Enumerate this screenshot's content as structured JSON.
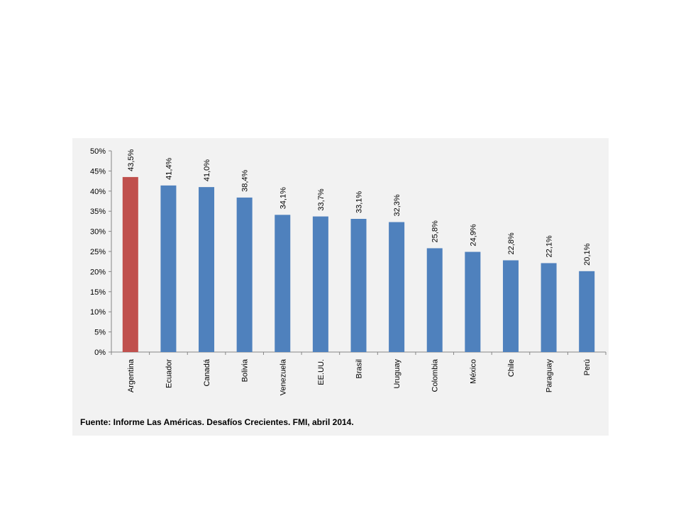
{
  "source_note": "Fuente: Informe Las Américas. Desafíos Crecientes. FMI, abril 2014.",
  "colors": {
    "highlight": "#c0504d",
    "bar": "#4f81bd",
    "panel": "#f2f2f2",
    "axis": "#868686"
  },
  "chart_data": {
    "type": "bar",
    "title": "",
    "xlabel": "",
    "ylabel": "",
    "ylim": [
      0,
      50
    ],
    "y_ticks": [
      "0%",
      "5%",
      "10%",
      "15%",
      "20%",
      "25%",
      "30%",
      "35%",
      "40%",
      "45%",
      "50%"
    ],
    "y_tick_values": [
      0,
      5,
      10,
      15,
      20,
      25,
      30,
      35,
      40,
      45,
      50
    ],
    "categories": [
      "Argentina",
      "Ecuador",
      "Canadá",
      "Bolivia",
      "Venezuela",
      "EE.UU.",
      "Brasil",
      "Uruguay",
      "Colombia",
      "México",
      "Chile",
      "Paraguay",
      "Perú"
    ],
    "values": [
      43.5,
      41.4,
      41.0,
      38.4,
      34.1,
      33.7,
      33.1,
      32.3,
      25.8,
      24.9,
      22.8,
      22.1,
      20.1
    ],
    "data_labels": [
      "43,5%",
      "41,4%",
      "41,0%",
      "38,4%",
      "34,1%",
      "33,7%",
      "33,1%",
      "32,3%",
      "25,8%",
      "24,9%",
      "22,8%",
      "22,1%",
      "20,1%"
    ],
    "highlighted_category": "Argentina",
    "grid": false,
    "legend": "none"
  }
}
